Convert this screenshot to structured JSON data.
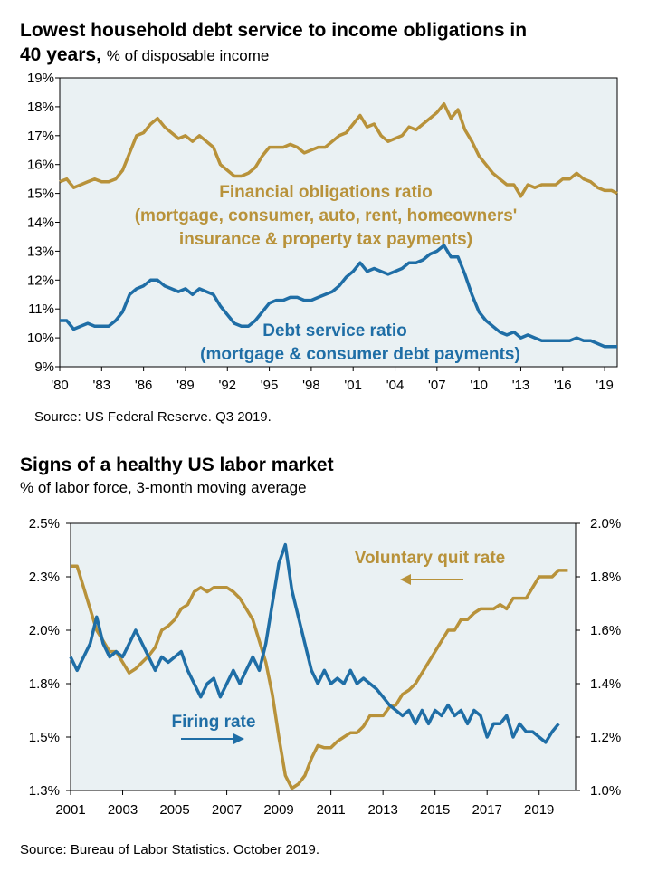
{
  "chart1": {
    "title_line1": "Lowest household debt service to income obligations in",
    "title_line2": "40 years,",
    "subtitle": "% of disposable income",
    "source": "Source: US Federal Reserve. Q3 2019."
  },
  "chart2": {
    "title": "Signs of a healthy US labor market",
    "subtitle": "% of labor force, 3-month moving average",
    "source": "Source: Bureau of Labor Statistics. October 2019."
  },
  "colors": {
    "gold": "#b8923a",
    "blue": "#1f6ea6",
    "plot_bg": "#eaf1f3"
  },
  "chart_data": [
    {
      "type": "line",
      "title": "Lowest household debt service to income obligations in 40 years, % of disposable income",
      "ylim": [
        9,
        19
      ],
      "yticks": [
        "9%",
        "10%",
        "11%",
        "12%",
        "13%",
        "14%",
        "15%",
        "16%",
        "17%",
        "18%",
        "19%"
      ],
      "xticks": [
        "'80",
        "'83",
        "'86",
        "'89",
        "'92",
        "'95",
        "'98",
        "'01",
        "'04",
        "'07",
        "'10",
        "'13",
        "'16",
        "'19"
      ],
      "xtick_years": [
        1980,
        1983,
        1986,
        1989,
        1992,
        1995,
        1998,
        2001,
        2004,
        2007,
        2010,
        2013,
        2016,
        2019
      ],
      "xlim": [
        1980,
        2019.9
      ],
      "grid": false,
      "series": [
        {
          "name": "Financial obligations ratio (mortgage, consumer, auto, rent, homeowners' insurance & property tax payments)",
          "label_lines": [
            "Financial obligations ratio",
            "(mortgage, consumer, auto, rent, homeowners'",
            "insurance & property tax payments)"
          ],
          "color": "#b8923a",
          "x": [
            1980,
            1980.5,
            1981,
            1981.5,
            1982,
            1982.5,
            1983,
            1983.5,
            1984,
            1984.5,
            1985,
            1985.5,
            1986,
            1986.5,
            1987,
            1987.5,
            1988,
            1988.5,
            1989,
            1989.5,
            1990,
            1990.5,
            1991,
            1991.5,
            1992,
            1992.5,
            1993,
            1993.5,
            1994,
            1994.5,
            1995,
            1995.5,
            1996,
            1996.5,
            1997,
            1997.5,
            1998,
            1998.5,
            1999,
            1999.5,
            2000,
            2000.5,
            2001,
            2001.5,
            2002,
            2002.5,
            2003,
            2003.5,
            2004,
            2004.5,
            2005,
            2005.5,
            2006,
            2006.5,
            2007,
            2007.5,
            2008,
            2008.5,
            2009,
            2009.5,
            2010,
            2010.5,
            2011,
            2011.5,
            2012,
            2012.5,
            2013,
            2013.5,
            2014,
            2014.5,
            2015,
            2015.5,
            2016,
            2016.5,
            2017,
            2017.5,
            2018,
            2018.5,
            2019,
            2019.5,
            2019.9
          ],
          "y": [
            15.4,
            15.5,
            15.2,
            15.3,
            15.4,
            15.5,
            15.4,
            15.4,
            15.5,
            15.8,
            16.4,
            17.0,
            17.1,
            17.4,
            17.6,
            17.3,
            17.1,
            16.9,
            17.0,
            16.8,
            17.0,
            16.8,
            16.6,
            16.0,
            15.8,
            15.6,
            15.6,
            15.7,
            15.9,
            16.3,
            16.6,
            16.6,
            16.6,
            16.7,
            16.6,
            16.4,
            16.5,
            16.6,
            16.6,
            16.8,
            17.0,
            17.1,
            17.4,
            17.7,
            17.3,
            17.4,
            17.0,
            16.8,
            16.9,
            17.0,
            17.3,
            17.2,
            17.4,
            17.6,
            17.8,
            18.1,
            17.6,
            17.9,
            17.2,
            16.8,
            16.3,
            16.0,
            15.7,
            15.5,
            15.3,
            15.3,
            14.9,
            15.3,
            15.2,
            15.3,
            15.3,
            15.3,
            15.5,
            15.5,
            15.7,
            15.5,
            15.4,
            15.2,
            15.1,
            15.1,
            15.0
          ]
        },
        {
          "name": "Debt service ratio (mortgage & consumer debt payments)",
          "label_lines": [
            "Debt service ratio",
            "(mortgage & consumer debt payments)"
          ],
          "color": "#1f6ea6",
          "x": [
            1980,
            1980.5,
            1981,
            1981.5,
            1982,
            1982.5,
            1983,
            1983.5,
            1984,
            1984.5,
            1985,
            1985.5,
            1986,
            1986.5,
            1987,
            1987.5,
            1988,
            1988.5,
            1989,
            1989.5,
            1990,
            1990.5,
            1991,
            1991.5,
            1992,
            1992.5,
            1993,
            1993.5,
            1994,
            1994.5,
            1995,
            1995.5,
            1996,
            1996.5,
            1997,
            1997.5,
            1998,
            1998.5,
            1999,
            1999.5,
            2000,
            2000.5,
            2001,
            2001.5,
            2002,
            2002.5,
            2003,
            2003.5,
            2004,
            2004.5,
            2005,
            2005.5,
            2006,
            2006.5,
            2007,
            2007.5,
            2008,
            2008.5,
            2009,
            2009.5,
            2010,
            2010.5,
            2011,
            2011.5,
            2012,
            2012.5,
            2013,
            2013.5,
            2014,
            2014.5,
            2015,
            2015.5,
            2016,
            2016.5,
            2017,
            2017.5,
            2018,
            2018.5,
            2019,
            2019.5,
            2019.9
          ],
          "y": [
            10.6,
            10.6,
            10.3,
            10.4,
            10.5,
            10.4,
            10.4,
            10.4,
            10.6,
            10.9,
            11.5,
            11.7,
            11.8,
            12.0,
            12.0,
            11.8,
            11.7,
            11.6,
            11.7,
            11.5,
            11.7,
            11.6,
            11.5,
            11.1,
            10.8,
            10.5,
            10.4,
            10.4,
            10.6,
            10.9,
            11.2,
            11.3,
            11.3,
            11.4,
            11.4,
            11.3,
            11.3,
            11.4,
            11.5,
            11.6,
            11.8,
            12.1,
            12.3,
            12.6,
            12.3,
            12.4,
            12.3,
            12.2,
            12.3,
            12.4,
            12.6,
            12.6,
            12.7,
            12.9,
            13.0,
            13.2,
            12.8,
            12.8,
            12.2,
            11.5,
            10.9,
            10.6,
            10.4,
            10.2,
            10.1,
            10.2,
            10.0,
            10.1,
            10.0,
            9.9,
            9.9,
            9.9,
            9.9,
            9.9,
            10.0,
            9.9,
            9.9,
            9.8,
            9.7,
            9.7,
            9.7
          ]
        }
      ]
    },
    {
      "type": "line",
      "title": "Signs of a healthy US labor market",
      "subtitle": "% of labor force, 3-month moving average",
      "xticks": [
        "2001",
        "2003",
        "2005",
        "2007",
        "2009",
        "2011",
        "2013",
        "2015",
        "2017",
        "2019"
      ],
      "xtick_years": [
        2001,
        2003,
        2005,
        2007,
        2009,
        2011,
        2013,
        2015,
        2017,
        2019
      ],
      "xlim": [
        2001,
        2020.4
      ],
      "y_left": {
        "ylim": [
          1.25,
          2.5
        ],
        "ticks": [
          "1.3%",
          "1.5%",
          "1.8%",
          "2.0%",
          "2.3%",
          "2.5%"
        ],
        "tick_values": [
          1.25,
          1.5,
          1.75,
          2.0,
          2.25,
          2.5
        ]
      },
      "y_right": {
        "ylim": [
          1.0,
          2.0
        ],
        "ticks": [
          "1.0%",
          "1.2%",
          "1.4%",
          "1.6%",
          "1.8%",
          "2.0%"
        ],
        "tick_values": [
          1.0,
          1.2,
          1.4,
          1.6,
          1.8,
          2.0
        ]
      },
      "grid": false,
      "series": [
        {
          "name": "Voluntary quit rate",
          "axis": "left",
          "color": "#b8923a",
          "x": [
            2001,
            2001.25,
            2001.5,
            2001.75,
            2002,
            2002.25,
            2002.5,
            2002.75,
            2003,
            2003.25,
            2003.5,
            2003.75,
            2004,
            2004.25,
            2004.5,
            2004.75,
            2005,
            2005.25,
            2005.5,
            2005.75,
            2006,
            2006.25,
            2006.5,
            2006.75,
            2007,
            2007.25,
            2007.5,
            2007.75,
            2008,
            2008.25,
            2008.5,
            2008.75,
            2009,
            2009.25,
            2009.5,
            2009.75,
            2010,
            2010.25,
            2010.5,
            2010.75,
            2011,
            2011.25,
            2011.5,
            2011.75,
            2012,
            2012.25,
            2012.5,
            2012.75,
            2013,
            2013.25,
            2013.5,
            2013.75,
            2014,
            2014.25,
            2014.5,
            2014.75,
            2015,
            2015.25,
            2015.5,
            2015.75,
            2016,
            2016.25,
            2016.5,
            2016.75,
            2017,
            2017.25,
            2017.5,
            2017.75,
            2018,
            2018.25,
            2018.5,
            2018.75,
            2019,
            2019.25,
            2019.5,
            2019.75,
            2020.1
          ],
          "y": [
            2.3,
            2.3,
            2.2,
            2.1,
            2.0,
            1.95,
            1.9,
            1.9,
            1.85,
            1.8,
            1.82,
            1.85,
            1.88,
            1.92,
            2.0,
            2.02,
            2.05,
            2.1,
            2.12,
            2.18,
            2.2,
            2.18,
            2.2,
            2.2,
            2.2,
            2.18,
            2.15,
            2.1,
            2.05,
            1.95,
            1.85,
            1.7,
            1.5,
            1.32,
            1.26,
            1.28,
            1.32,
            1.4,
            1.46,
            1.45,
            1.45,
            1.48,
            1.5,
            1.52,
            1.52,
            1.55,
            1.6,
            1.6,
            1.6,
            1.64,
            1.65,
            1.7,
            1.72,
            1.75,
            1.8,
            1.85,
            1.9,
            1.95,
            2.0,
            2.0,
            2.05,
            2.05,
            2.08,
            2.1,
            2.1,
            2.1,
            2.12,
            2.1,
            2.15,
            2.15,
            2.15,
            2.2,
            2.25,
            2.25,
            2.25,
            2.28,
            2.28
          ]
        },
        {
          "name": "Firing rate",
          "axis": "right",
          "color": "#1f6ea6",
          "x": [
            2001,
            2001.25,
            2001.5,
            2001.75,
            2002,
            2002.25,
            2002.5,
            2002.75,
            2003,
            2003.25,
            2003.5,
            2003.75,
            2004,
            2004.25,
            2004.5,
            2004.75,
            2005,
            2005.25,
            2005.5,
            2005.75,
            2006,
            2006.25,
            2006.5,
            2006.75,
            2007,
            2007.25,
            2007.5,
            2007.75,
            2008,
            2008.25,
            2008.5,
            2008.75,
            2009,
            2009.25,
            2009.5,
            2009.75,
            2010,
            2010.25,
            2010.5,
            2010.75,
            2011,
            2011.25,
            2011.5,
            2011.75,
            2012,
            2012.25,
            2012.5,
            2012.75,
            2013,
            2013.25,
            2013.5,
            2013.75,
            2014,
            2014.25,
            2014.5,
            2014.75,
            2015,
            2015.25,
            2015.5,
            2015.75,
            2016,
            2016.25,
            2016.5,
            2016.75,
            2017,
            2017.25,
            2017.5,
            2017.75,
            2018,
            2018.25,
            2018.5,
            2018.75,
            2019,
            2019.25,
            2019.5,
            2019.75
          ],
          "y": [
            1.5,
            1.45,
            1.5,
            1.55,
            1.65,
            1.55,
            1.5,
            1.52,
            1.5,
            1.55,
            1.6,
            1.55,
            1.5,
            1.45,
            1.5,
            1.48,
            1.5,
            1.52,
            1.45,
            1.4,
            1.35,
            1.4,
            1.42,
            1.35,
            1.4,
            1.45,
            1.4,
            1.45,
            1.5,
            1.45,
            1.55,
            1.7,
            1.85,
            1.92,
            1.75,
            1.65,
            1.55,
            1.45,
            1.4,
            1.45,
            1.4,
            1.42,
            1.4,
            1.45,
            1.4,
            1.42,
            1.4,
            1.38,
            1.35,
            1.32,
            1.3,
            1.28,
            1.3,
            1.25,
            1.3,
            1.25,
            1.3,
            1.28,
            1.32,
            1.28,
            1.3,
            1.25,
            1.3,
            1.28,
            1.2,
            1.25,
            1.25,
            1.28,
            1.2,
            1.25,
            1.22,
            1.22,
            1.2,
            1.18,
            1.22,
            1.25
          ]
        }
      ]
    }
  ]
}
